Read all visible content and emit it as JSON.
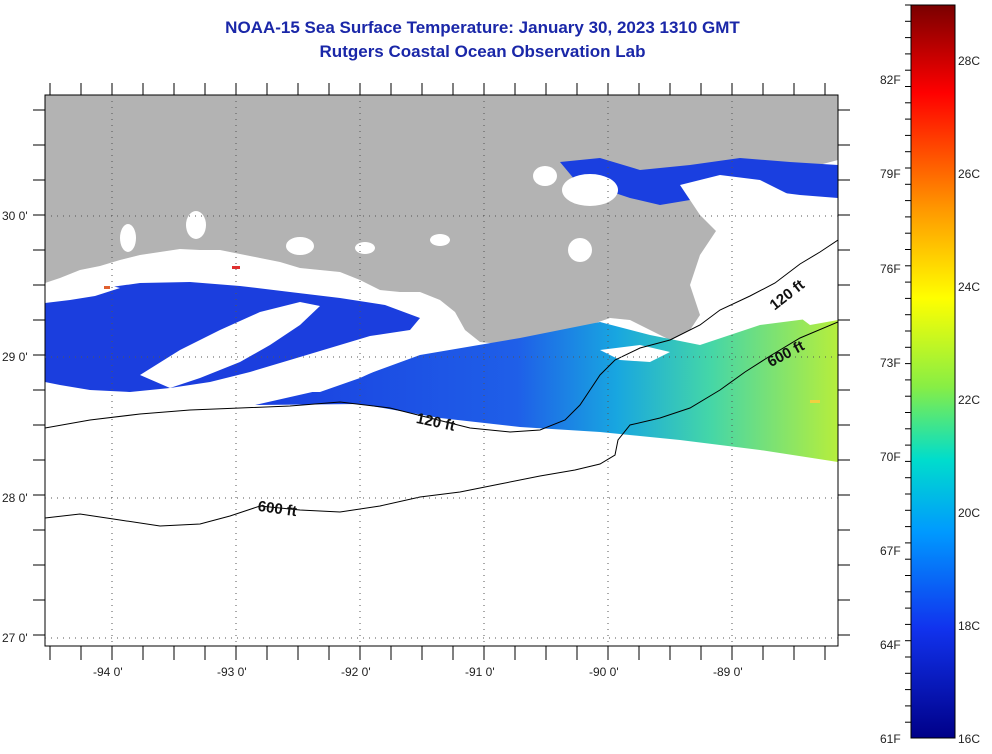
{
  "title": "NOAA-15 Sea Surface Temperature:  January 30, 2023 1310 GMT",
  "subtitle": "Rutgers Coastal Ocean Observation Lab",
  "map": {
    "lon_ticks": [
      "-94 0'",
      "-93 0'",
      "-92 0'",
      "-91 0'",
      "-90 0'",
      "-89 0'"
    ],
    "lat_ticks": [
      "30 0'",
      "29 0'",
      "28 0'",
      "27 0'"
    ],
    "contour_labels": [
      "120 ft",
      "600 ft",
      "120 ft",
      "600 ft"
    ]
  },
  "colorbar": {
    "fahrenheit_labels": [
      "82F",
      "79F",
      "76F",
      "73F",
      "70F",
      "67F",
      "64F",
      "61F"
    ],
    "celsius_labels": [
      "28C",
      "26C",
      "24C",
      "22C",
      "20C",
      "18C",
      "16C"
    ],
    "min_c": 16,
    "max_c": 29.5
  },
  "colors": {
    "title": "#1a27a8",
    "land": "#b3b3b3",
    "cloud": "#ffffff"
  }
}
